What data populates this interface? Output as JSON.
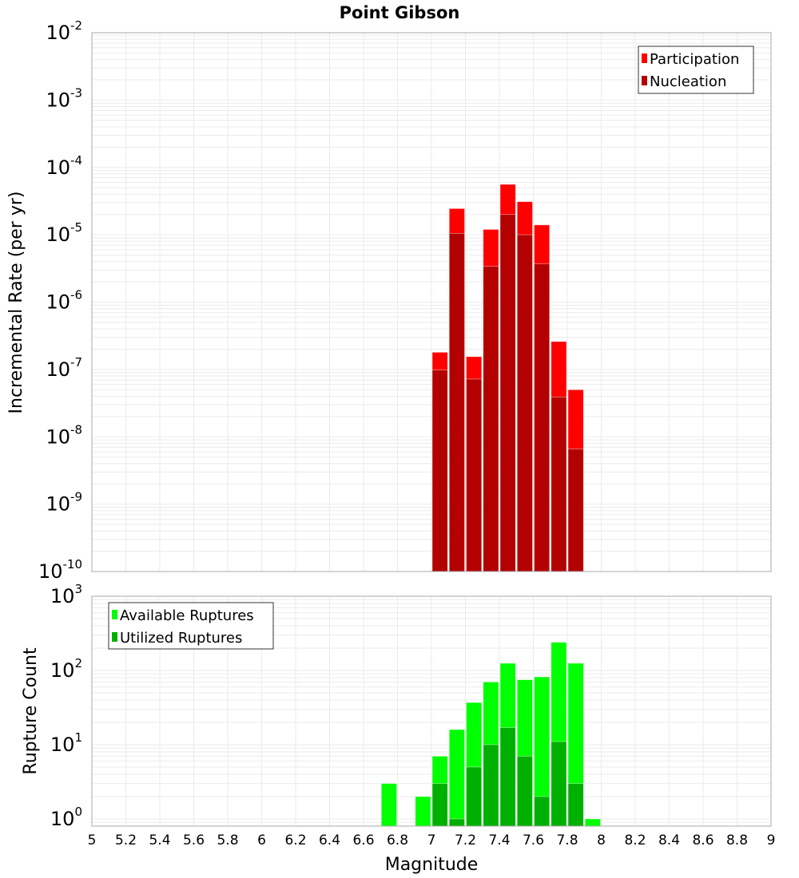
{
  "chart_data": [
    {
      "type": "bar",
      "title": "Point Gibson",
      "xlabel": "Magnitude",
      "ylabel": "Incremental Rate (per yr)",
      "yscale": "log",
      "ylim": [
        1e-10,
        0.01
      ],
      "xlim": [
        5,
        9
      ],
      "bar_width": 0.1,
      "legend_position": "top-right",
      "x": [
        7.05,
        7.15,
        7.25,
        7.35,
        7.45,
        7.55,
        7.65,
        7.75,
        7.85
      ],
      "series": [
        {
          "name": "Participation",
          "color": "#ff0000",
          "values": [
            1.8e-07,
            2.45e-05,
            1.55e-07,
            1.2e-05,
            5.6e-05,
            3.1e-05,
            1.4e-05,
            2.6e-07,
            5e-08
          ]
        },
        {
          "name": "Nucleation",
          "color": "#b30000",
          "values": [
            9.8e-08,
            1.05e-05,
            7.2e-08,
            3.4e-06,
            2e-05,
            1e-05,
            3.7e-06,
            3.9e-08,
            6.6e-09
          ]
        }
      ],
      "yticks": [
        {
          "base": "10",
          "exp": "-10",
          "value": 1e-10
        },
        {
          "base": "10",
          "exp": "-9",
          "value": 1e-09
        },
        {
          "base": "10",
          "exp": "-8",
          "value": 1e-08
        },
        {
          "base": "10",
          "exp": "-7",
          "value": 1e-07
        },
        {
          "base": "10",
          "exp": "-6",
          "value": 1e-06
        },
        {
          "base": "10",
          "exp": "-5",
          "value": 1e-05
        },
        {
          "base": "10",
          "exp": "-4",
          "value": 0.0001
        },
        {
          "base": "10",
          "exp": "-3",
          "value": 0.001
        },
        {
          "base": "10",
          "exp": "-2",
          "value": 0.01
        }
      ]
    },
    {
      "type": "bar",
      "xlabel": "Magnitude",
      "ylabel": "Rupture Count",
      "yscale": "log",
      "ylim": [
        0.8,
        1000
      ],
      "xlim": [
        5,
        9
      ],
      "bar_width": 0.1,
      "legend_position": "top-left",
      "x": [
        6.75,
        6.95,
        7.05,
        7.15,
        7.25,
        7.35,
        7.45,
        7.55,
        7.65,
        7.75,
        7.85,
        7.95
      ],
      "series": [
        {
          "name": "Available Ruptures",
          "color": "#00ff00",
          "values": [
            3,
            2,
            7,
            16,
            37,
            70,
            125,
            75,
            82,
            240,
            125,
            1
          ]
        },
        {
          "name": "Utilized Ruptures",
          "color": "#00b000",
          "values": [
            0,
            0,
            3,
            1,
            5,
            10,
            17,
            7,
            2,
            11,
            3,
            0
          ]
        }
      ],
      "yticks": [
        {
          "base": "10",
          "exp": "0",
          "value": 1
        },
        {
          "base": "10",
          "exp": "1",
          "value": 10
        },
        {
          "base": "10",
          "exp": "2",
          "value": 100
        },
        {
          "base": "10",
          "exp": "3",
          "value": 1000
        }
      ],
      "xticks": [
        "5",
        "5.2",
        "5.4",
        "5.6",
        "5.8",
        "6",
        "6.2",
        "6.4",
        "6.6",
        "6.8",
        "7",
        "7.2",
        "7.4",
        "7.6",
        "7.8",
        "8",
        "8.2",
        "8.4",
        "8.6",
        "8.8",
        "9"
      ]
    }
  ]
}
